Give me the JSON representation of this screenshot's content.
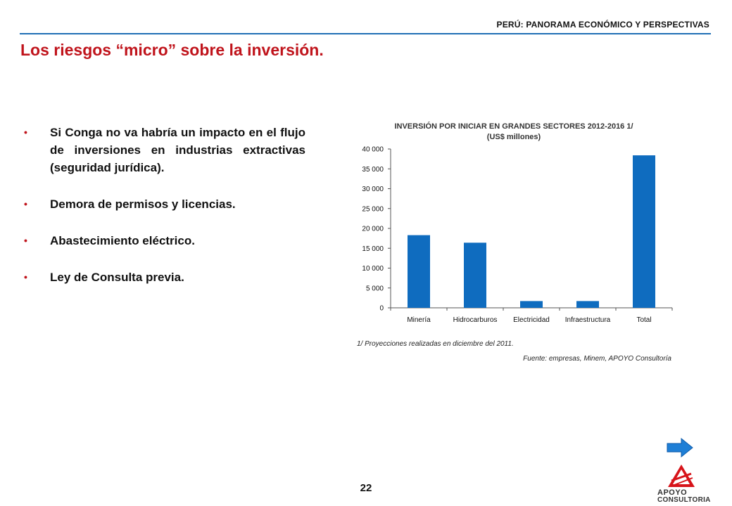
{
  "header": {
    "title": "PERÚ: PANORAMA ECONÓMICO Y PERSPECTIVAS",
    "accent_color": "#1f6fb5"
  },
  "page_title": "Los riesgos “micro” sobre la inversión.",
  "title_color": "#c0141c",
  "bullets": [
    "Si Conga no va habría un impacto en el flujo de inversiones en industrias extractivas (seguridad jurídica).",
    "Demora de permisos y licencias.",
    "Abastecimiento eléctrico.",
    "Ley de Consulta previa."
  ],
  "bullet_glyph": "•",
  "chart_data": {
    "type": "bar",
    "title": "INVERSIÓN POR INICIAR EN GRANDES SECTORES 2012-2016 1/",
    "subtitle": "(US$ millones)",
    "categories": [
      "Minería",
      "Hidrocarburos",
      "Electricidad",
      "Infraestructura",
      "Total"
    ],
    "values": [
      18300,
      16400,
      1700,
      1700,
      38400
    ],
    "ylim": [
      0,
      40000
    ],
    "yticks": [
      0,
      5000,
      10000,
      15000,
      20000,
      25000,
      30000,
      35000,
      40000
    ],
    "ytick_labels": [
      "0",
      "5 000",
      "10 000",
      "15 000",
      "20 000",
      "25 000",
      "30 000",
      "35 000",
      "40 000"
    ],
    "bar_color": "#0f6cbf",
    "grid": false,
    "xlabel": "",
    "ylabel": ""
  },
  "note": "1/ Proyecciones realizadas en diciembre del 2011.",
  "source": "Fuente: empresas, Minem, APOYO Consultoría",
  "page_number": "22",
  "nav": {
    "next_icon": "right-arrow-icon",
    "arrow_color": "#1f7fd6"
  },
  "logo": {
    "line1": "APOYO",
    "line2": "CONSULTORIA",
    "mark_color": "#d7141a"
  }
}
